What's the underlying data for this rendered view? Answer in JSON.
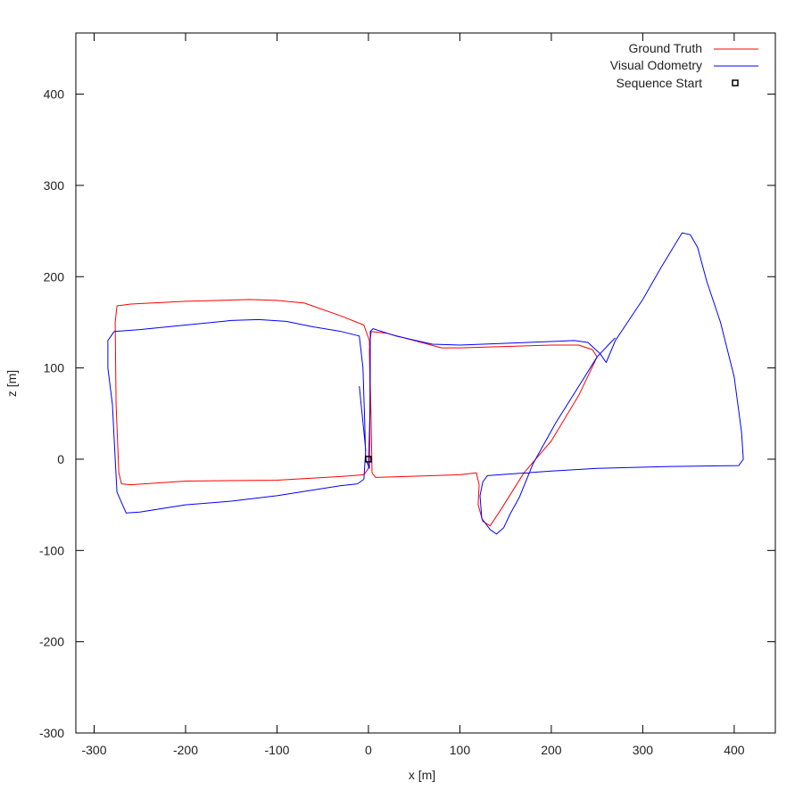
{
  "chart_data": {
    "type": "line",
    "xlabel": "x [m]",
    "ylabel": "z [m]",
    "xlim": [
      -320,
      445
    ],
    "ylim": [
      -300,
      467
    ],
    "xticks": [
      -300,
      -200,
      -100,
      0,
      100,
      200,
      300,
      400
    ],
    "yticks": [
      -300,
      -200,
      -100,
      0,
      100,
      200,
      300,
      400
    ],
    "xtick_labels": [
      "-300",
      "-200",
      "-100",
      "0",
      "100",
      "200",
      "300",
      "400"
    ],
    "ytick_labels": [
      "-300",
      "-200",
      "-100",
      "0",
      "100",
      "200",
      "300",
      "400"
    ],
    "grid": false,
    "legend_position": "top-right",
    "series": [
      {
        "name": "Ground Truth",
        "color": "#ff0000",
        "points": [
          [
            0,
            0
          ],
          [
            2,
            60
          ],
          [
            1,
            120
          ],
          [
            3,
            140
          ],
          [
            20,
            138
          ],
          [
            50,
            130
          ],
          [
            80,
            122
          ],
          [
            100,
            122
          ],
          [
            200,
            125
          ],
          [
            230,
            125
          ],
          [
            245,
            120
          ],
          [
            250,
            112
          ],
          [
            230,
            70
          ],
          [
            200,
            20
          ],
          [
            170,
            -15
          ],
          [
            145,
            -55
          ],
          [
            133,
            -73
          ],
          [
            125,
            -68
          ],
          [
            120,
            -50
          ],
          [
            121,
            -28
          ],
          [
            118,
            -15
          ],
          [
            100,
            -17
          ],
          [
            40,
            -19
          ],
          [
            8,
            -20
          ],
          [
            4,
            -15
          ],
          [
            3,
            40
          ],
          [
            1,
            130
          ],
          [
            -5,
            147
          ],
          [
            -30,
            157
          ],
          [
            -70,
            171
          ],
          [
            -100,
            174
          ],
          [
            -130,
            175
          ],
          [
            -200,
            173
          ],
          [
            -260,
            170
          ],
          [
            -275,
            168
          ],
          [
            -277,
            150
          ],
          [
            -276,
            60
          ],
          [
            -273,
            -15
          ],
          [
            -270,
            -27
          ],
          [
            -260,
            -28
          ],
          [
            -200,
            -24
          ],
          [
            -100,
            -23
          ],
          [
            -30,
            -19
          ],
          [
            -5,
            -17
          ],
          [
            0,
            -10
          ],
          [
            0,
            0
          ]
        ]
      },
      {
        "name": "Visual Odometry",
        "color": "#0000ff",
        "points": [
          [
            -10,
            80
          ],
          [
            -7,
            50
          ],
          [
            -3,
            10
          ],
          [
            -5,
            -22
          ],
          [
            -12,
            -27
          ],
          [
            -30,
            -29
          ],
          [
            -100,
            -40
          ],
          [
            -150,
            -46
          ],
          [
            -200,
            -50
          ],
          [
            -250,
            -58
          ],
          [
            -265,
            -59
          ],
          [
            -275,
            -36
          ],
          [
            -277,
            0
          ],
          [
            -280,
            60
          ],
          [
            -285,
            100
          ],
          [
            -285,
            130
          ],
          [
            -278,
            140
          ],
          [
            -250,
            142
          ],
          [
            -200,
            147
          ],
          [
            -150,
            152
          ],
          [
            -120,
            153
          ],
          [
            -90,
            151
          ],
          [
            -60,
            145
          ],
          [
            -30,
            140
          ],
          [
            -10,
            135
          ],
          [
            -6,
            100
          ],
          [
            -4,
            40
          ],
          [
            -3,
            0
          ],
          [
            1,
            -10
          ],
          [
            2,
            100
          ],
          [
            2,
            140
          ],
          [
            5,
            143
          ],
          [
            30,
            135
          ],
          [
            70,
            126
          ],
          [
            100,
            125
          ],
          [
            150,
            127
          ],
          [
            225,
            130
          ],
          [
            240,
            128
          ],
          [
            253,
            116
          ],
          [
            260,
            106
          ],
          [
            270,
            130
          ],
          [
            300,
            175
          ],
          [
            320,
            210
          ],
          [
            343,
            248
          ],
          [
            352,
            246
          ],
          [
            360,
            232
          ],
          [
            370,
            195
          ],
          [
            385,
            150
          ],
          [
            400,
            90
          ],
          [
            408,
            30
          ],
          [
            410,
            0
          ],
          [
            405,
            -7
          ],
          [
            330,
            -8
          ],
          [
            250,
            -10
          ],
          [
            200,
            -13
          ],
          [
            130,
            -18
          ],
          [
            125,
            -25
          ],
          [
            122,
            -40
          ],
          [
            124,
            -65
          ],
          [
            133,
            -77
          ],
          [
            140,
            -82
          ],
          [
            148,
            -75
          ],
          [
            155,
            -60
          ],
          [
            165,
            -42
          ],
          [
            180,
            -5
          ],
          [
            205,
            40
          ],
          [
            230,
            80
          ],
          [
            250,
            112
          ],
          [
            265,
            128
          ],
          [
            270,
            133
          ]
        ]
      }
    ],
    "markers": [
      {
        "name": "Sequence Start",
        "x": 0,
        "y": 0,
        "shape": "square"
      }
    ]
  }
}
